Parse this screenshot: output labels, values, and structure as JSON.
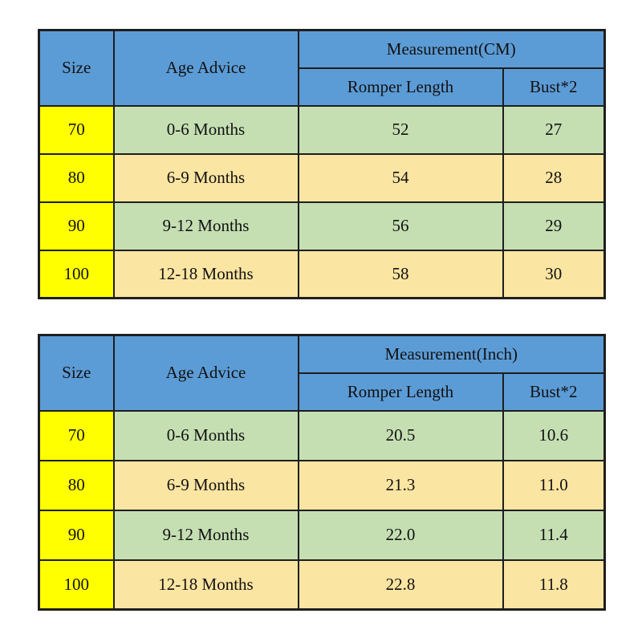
{
  "colors": {
    "header_blue": "#5c9cd6",
    "size_yellow": "#ffff00",
    "row_green": "#c5dfb3",
    "row_tan": "#fbe5a2",
    "border": "#1e1e1e",
    "text": "#111111",
    "background": "#ffffff"
  },
  "tables": [
    {
      "unit": "cm",
      "headers": {
        "size": "Size",
        "age": "Age Advice",
        "measurement": "Measurement(CM)",
        "romper": "Romper Length",
        "bust": "Bust*2"
      },
      "rows": [
        {
          "size": "70",
          "age": "0-6 Months",
          "romper": "52",
          "bust": "27"
        },
        {
          "size": "80",
          "age": "6-9 Months",
          "romper": "54",
          "bust": "28"
        },
        {
          "size": "90",
          "age": "9-12 Months",
          "romper": "56",
          "bust": "29"
        },
        {
          "size": "100",
          "age": "12-18 Months",
          "romper": "58",
          "bust": "30"
        }
      ]
    },
    {
      "unit": "inch",
      "headers": {
        "size": "Size",
        "age": "Age Advice",
        "measurement": "Measurement(Inch)",
        "romper": "Romper Length",
        "bust": "Bust*2"
      },
      "rows": [
        {
          "size": "70",
          "age": "0-6 Months",
          "romper": "20.5",
          "bust": "10.6"
        },
        {
          "size": "80",
          "age": "6-9 Months",
          "romper": "21.3",
          "bust": "11.0"
        },
        {
          "size": "90",
          "age": "9-12 Months",
          "romper": "22.0",
          "bust": "11.4"
        },
        {
          "size": "100",
          "age": "12-18 Months",
          "romper": "22.8",
          "bust": "11.8"
        }
      ]
    }
  ],
  "chart_data": [
    {
      "type": "table",
      "title": "Measurement(CM)",
      "columns": [
        "Size",
        "Age Advice",
        "Romper Length",
        "Bust*2"
      ],
      "rows": [
        [
          "70",
          "0-6 Months",
          52,
          27
        ],
        [
          "80",
          "6-9 Months",
          54,
          28
        ],
        [
          "90",
          "9-12 Months",
          56,
          29
        ],
        [
          "100",
          "12-18 Months",
          58,
          30
        ]
      ]
    },
    {
      "type": "table",
      "title": "Measurement(Inch)",
      "columns": [
        "Size",
        "Age Advice",
        "Romper Length",
        "Bust*2"
      ],
      "rows": [
        [
          "70",
          "0-6 Months",
          20.5,
          10.6
        ],
        [
          "80",
          "6-9 Months",
          21.3,
          11.0
        ],
        [
          "90",
          "9-12 Months",
          22.0,
          11.4
        ],
        [
          "100",
          "12-18 Months",
          22.8,
          11.8
        ]
      ]
    }
  ]
}
